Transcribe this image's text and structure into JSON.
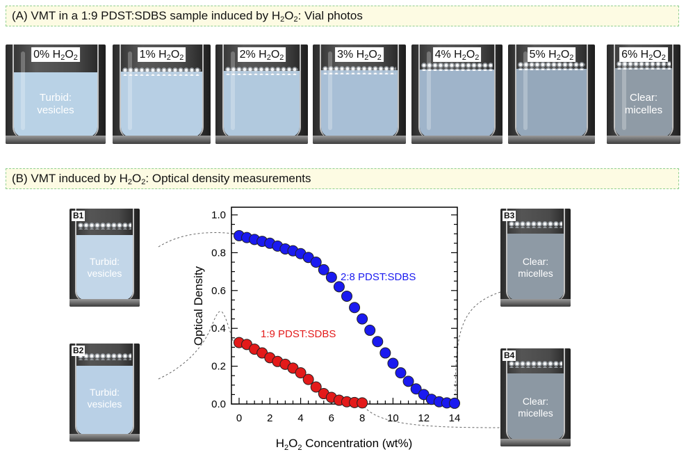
{
  "panel_a": {
    "title_prefix": "(A) VMT in a 1:9 PDST:SDBS sample induced by H",
    "title_sub1": "2",
    "title_mid": "O",
    "title_sub2": "2",
    "title_suffix": ": Vial photos",
    "vials": [
      {
        "pct": "0%",
        "h": "H",
        "s1": "2",
        "o": "O",
        "s2": "2",
        "caption1": "Turbid:",
        "caption2": "vesicles",
        "liquid_color": "#b9d2e6"
      },
      {
        "pct": "1%",
        "h": "H",
        "s1": "2",
        "o": "O",
        "s2": "2",
        "caption1": "",
        "caption2": "",
        "liquid_color": "#b7cfe4"
      },
      {
        "pct": "2%",
        "h": "H",
        "s1": "2",
        "o": "O",
        "s2": "2",
        "caption1": "",
        "caption2": "",
        "liquid_color": "#b1c9de"
      },
      {
        "pct": "3%",
        "h": "H",
        "s1": "2",
        "o": "O",
        "s2": "2",
        "caption1": "",
        "caption2": "",
        "liquid_color": "#a8bfd6"
      },
      {
        "pct": "4%",
        "h": "H",
        "s1": "2",
        "o": "O",
        "s2": "2",
        "caption1": "",
        "caption2": "",
        "liquid_color": "#9fb4ca"
      },
      {
        "pct": "5%",
        "h": "H",
        "s1": "2",
        "o": "O",
        "s2": "2",
        "caption1": "",
        "caption2": "",
        "liquid_color": "#95a8bb"
      },
      {
        "pct": "6%",
        "h": "H",
        "s1": "2",
        "o": "O",
        "s2": "2",
        "caption1": "Clear:",
        "caption2": "micelles",
        "liquid_color": "#8f9ba6"
      }
    ]
  },
  "panel_b": {
    "title_prefix": "(B) VMT induced by H",
    "title_sub1": "2",
    "title_mid": "O",
    "title_sub2": "2",
    "title_suffix": ": Optical density measurements",
    "insets": [
      {
        "label": "B1",
        "caption1": "Turbid:",
        "caption2": "vesicles",
        "liquid_color": "#c2d6e8"
      },
      {
        "label": "B2",
        "caption1": "Turbid:",
        "caption2": "vesicles",
        "liquid_color": "#b9d0e6"
      },
      {
        "label": "B3",
        "caption1": "Clear:",
        "caption2": "micelles",
        "liquid_color": "#8e9aa5"
      },
      {
        "label": "B4",
        "caption1": "Clear:",
        "caption2": "micelles",
        "liquid_color": "#8c98a3"
      }
    ]
  },
  "chart_data": {
    "type": "scatter",
    "xlabel_prefix": "H",
    "xlabel_sub1": "2",
    "xlabel_mid": "O",
    "xlabel_sub2": "2",
    "xlabel_suffix": " Concentration (wt%)",
    "ylabel": "Optical Density",
    "xlim": [
      0,
      15
    ],
    "ylim": [
      0,
      1.0
    ],
    "xticks": [
      "0",
      "2",
      "4",
      "6",
      "8",
      "10",
      "12",
      "14"
    ],
    "yticks": [
      "0.0",
      "0.2",
      "0.4",
      "0.6",
      "0.8",
      "1.0"
    ],
    "series": [
      {
        "name": "2:8 PDST:SDBS",
        "color": "#1a1af0",
        "x": [
          0,
          0.5,
          1,
          1.5,
          2,
          2.5,
          3,
          3.5,
          4,
          4.5,
          5,
          5.5,
          6,
          6.5,
          7,
          7.5,
          8,
          8.5,
          9,
          9.5,
          10,
          10.5,
          11,
          11.5,
          12,
          12.5,
          13,
          13.5,
          14
        ],
        "y": [
          0.89,
          0.88,
          0.87,
          0.86,
          0.85,
          0.835,
          0.82,
          0.81,
          0.795,
          0.775,
          0.75,
          0.71,
          0.67,
          0.62,
          0.57,
          0.51,
          0.45,
          0.39,
          0.33,
          0.27,
          0.215,
          0.165,
          0.12,
          0.08,
          0.05,
          0.025,
          0.012,
          0.006,
          0.004
        ]
      },
      {
        "name": "1:9 PDST:SDBS",
        "color": "#e31a1a",
        "x": [
          0,
          0.5,
          1,
          1.5,
          2,
          2.5,
          3,
          3.5,
          4,
          4.5,
          5,
          5.5,
          6,
          6.5,
          7,
          7.5,
          8
        ],
        "y": [
          0.325,
          0.315,
          0.29,
          0.27,
          0.245,
          0.225,
          0.21,
          0.19,
          0.165,
          0.13,
          0.09,
          0.055,
          0.035,
          0.02,
          0.012,
          0.008,
          0.006
        ]
      }
    ]
  }
}
